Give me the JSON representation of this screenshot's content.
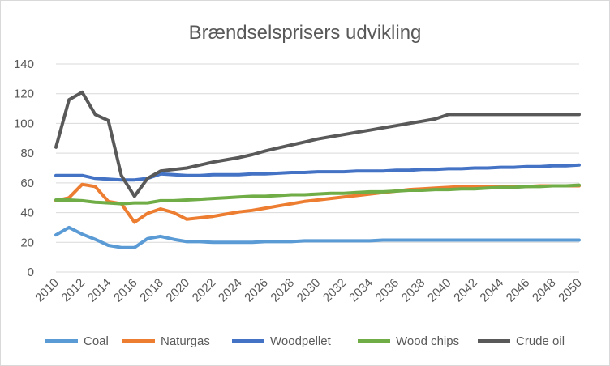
{
  "chart_data": {
    "type": "line",
    "title": "Brændselsprisers udvikling",
    "xlabel": "",
    "ylabel": "",
    "ylim": [
      0,
      140
    ],
    "yticks": [
      0,
      20,
      40,
      60,
      80,
      100,
      120,
      140
    ],
    "xlim": [
      2010,
      2050
    ],
    "xticks": [
      2010,
      2012,
      2014,
      2016,
      2018,
      2020,
      2022,
      2024,
      2026,
      2028,
      2030,
      2032,
      2034,
      2036,
      2038,
      2040,
      2042,
      2044,
      2046,
      2048,
      2050
    ],
    "grid": true,
    "legend_position": "bottom",
    "x": [
      2010,
      2011,
      2012,
      2013,
      2014,
      2015,
      2016,
      2017,
      2018,
      2019,
      2020,
      2021,
      2022,
      2023,
      2024,
      2025,
      2026,
      2027,
      2028,
      2029,
      2030,
      2031,
      2032,
      2033,
      2034,
      2035,
      2036,
      2037,
      2038,
      2039,
      2040,
      2041,
      2042,
      2043,
      2044,
      2045,
      2046,
      2047,
      2048,
      2049,
      2050
    ],
    "series": [
      {
        "name": "Coal",
        "color": "#5b9bd5",
        "values": [
          25,
          30,
          25.5,
          22,
          18,
          16.5,
          16.5,
          22.5,
          24,
          22,
          20.5,
          20.5,
          20,
          20,
          20,
          20,
          20.5,
          20.5,
          20.5,
          21,
          21,
          21,
          21,
          21,
          21,
          21.5,
          21.5,
          21.5,
          21.5,
          21.5,
          21.5,
          21.5,
          21.5,
          21.5,
          21.5,
          21.5,
          21.5,
          21.5,
          21.5,
          21.5,
          21.5
        ]
      },
      {
        "name": "Naturgas",
        "color": "#ed7d31",
        "values": [
          48,
          50,
          59,
          57.5,
          47.5,
          46,
          33.5,
          39.5,
          42.5,
          40,
          35.5,
          36.5,
          37.5,
          39,
          40.5,
          41.5,
          43,
          44.5,
          46,
          47.5,
          48.5,
          49.5,
          50.5,
          51.5,
          52.5,
          53.5,
          54.5,
          55.5,
          56,
          56.5,
          57,
          57.5,
          57.5,
          57.5,
          57.5,
          57.5,
          57.5,
          58,
          58,
          58,
          58
        ]
      },
      {
        "name": "Woodpellet",
        "color": "#4472c4",
        "values": [
          65,
          65,
          65,
          63,
          62.5,
          62,
          62,
          63,
          66,
          65.5,
          65,
          65,
          65.5,
          65.5,
          65.5,
          66,
          66,
          66.5,
          67,
          67,
          67.5,
          67.5,
          67.5,
          68,
          68,
          68,
          68.5,
          68.5,
          69,
          69,
          69.5,
          69.5,
          70,
          70,
          70.5,
          70.5,
          71,
          71,
          71.5,
          71.5,
          72
        ]
      },
      {
        "name": "Wood chips",
        "color": "#70ad47",
        "values": [
          48.5,
          48.5,
          48,
          47,
          46.5,
          46,
          46.5,
          46.5,
          48,
          48,
          48.5,
          49,
          49.5,
          50,
          50.5,
          51,
          51,
          51.5,
          52,
          52,
          52.5,
          53,
          53,
          53.5,
          54,
          54,
          54.5,
          55,
          55,
          55.5,
          55.5,
          56,
          56,
          56.5,
          57,
          57,
          57.5,
          57.5,
          58,
          58,
          58.5
        ]
      },
      {
        "name": "Crude oil",
        "color": "#595959",
        "values": [
          84,
          116,
          121,
          106,
          102,
          65,
          51,
          63,
          68,
          69,
          70,
          72,
          74,
          75.5,
          77,
          79,
          81.5,
          83.5,
          85.5,
          87.5,
          89.5,
          91,
          92.5,
          94,
          95.5,
          97,
          98.5,
          100,
          101.5,
          103,
          106,
          106,
          106,
          106,
          106,
          106,
          106,
          106,
          106,
          106,
          106
        ]
      }
    ]
  }
}
